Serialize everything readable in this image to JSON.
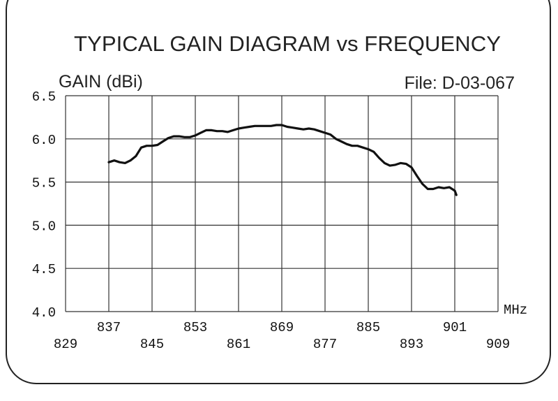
{
  "chart_data": {
    "type": "line",
    "title": "TYPICAL GAIN DIAGRAM vs FREQUENCY",
    "ylabel": "GAIN (dBi)",
    "file_label": "File:  D-03-067",
    "xunit": "MHz",
    "xlim": [
      829,
      909
    ],
    "ylim": [
      4.0,
      6.5
    ],
    "grid": true,
    "x_ticks_upper": [
      "837",
      "853",
      "869",
      "885",
      "901"
    ],
    "x_ticks_lower": [
      "829",
      "845",
      "861",
      "877",
      "893",
      "909"
    ],
    "y_ticks": [
      "6.5",
      "6.0",
      "5.5",
      "5.0",
      "4.5",
      "4.0"
    ],
    "series": [
      {
        "x": [
          837,
          838,
          839,
          840,
          841,
          842,
          843,
          844,
          845,
          846,
          847,
          848,
          849,
          850,
          851,
          852,
          853,
          854,
          855,
          856,
          857,
          858,
          859,
          860,
          861,
          862,
          863,
          864,
          865,
          866,
          867,
          868,
          869,
          870,
          871,
          872,
          873,
          874,
          875,
          876,
          877,
          878,
          879,
          880,
          881,
          882,
          883,
          884,
          885,
          886,
          887,
          888,
          889,
          890,
          891,
          892,
          893,
          894,
          895,
          896,
          897,
          898,
          899,
          900,
          901,
          901.3
        ],
        "y": [
          5.73,
          5.75,
          5.73,
          5.72,
          5.75,
          5.8,
          5.9,
          5.92,
          5.92,
          5.93,
          5.97,
          6.01,
          6.03,
          6.03,
          6.02,
          6.02,
          6.04,
          6.07,
          6.1,
          6.1,
          6.09,
          6.09,
          6.08,
          6.1,
          6.12,
          6.13,
          6.14,
          6.15,
          6.15,
          6.15,
          6.15,
          6.16,
          6.16,
          6.14,
          6.13,
          6.12,
          6.11,
          6.12,
          6.11,
          6.09,
          6.07,
          6.05,
          6.0,
          5.97,
          5.94,
          5.92,
          5.92,
          5.9,
          5.88,
          5.85,
          5.78,
          5.72,
          5.69,
          5.7,
          5.72,
          5.71,
          5.67,
          5.57,
          5.48,
          5.42,
          5.42,
          5.44,
          5.43,
          5.44,
          5.4,
          5.35
        ]
      }
    ]
  }
}
